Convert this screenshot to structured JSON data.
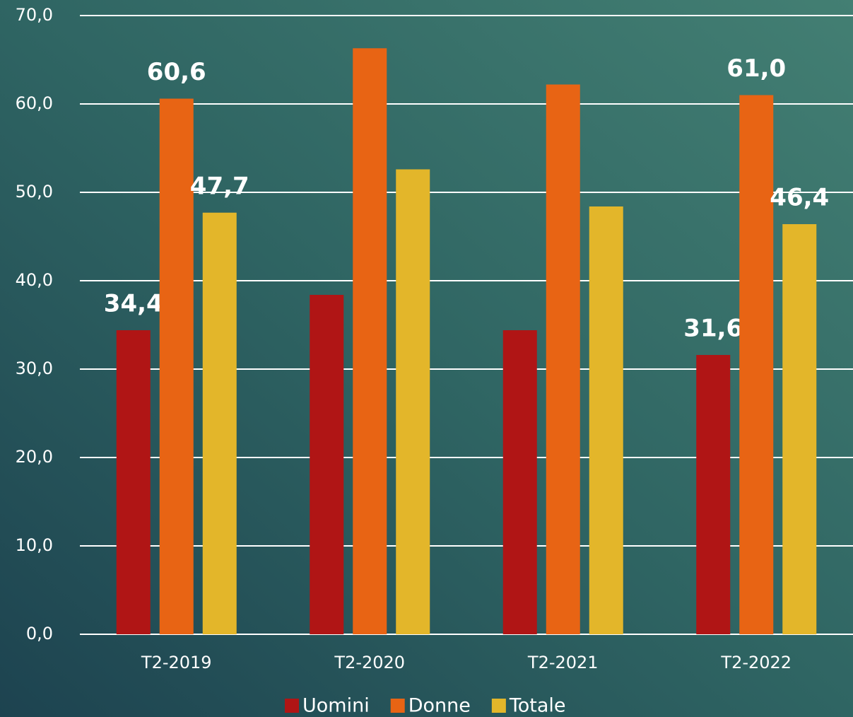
{
  "chart_data": {
    "type": "bar",
    "categories": [
      "T2-2019",
      "T2-2020",
      "T2-2021",
      "T2-2022"
    ],
    "series": [
      {
        "name": "Uomini",
        "color": "#b01515",
        "values": [
          34.4,
          38.4,
          34.4,
          31.6
        ],
        "value_labels": [
          "34,4",
          null,
          null,
          "31,6"
        ]
      },
      {
        "name": "Donne",
        "color": "#e86414",
        "values": [
          60.6,
          66.3,
          62.2,
          61.0
        ],
        "value_labels": [
          "60,6",
          null,
          null,
          "61,0"
        ]
      },
      {
        "name": "Totale",
        "color": "#e3b62a",
        "values": [
          47.7,
          52.6,
          48.4,
          46.4
        ],
        "value_labels": [
          "47,7",
          null,
          null,
          "46,4"
        ]
      }
    ],
    "ylim": [
      0,
      70
    ],
    "yticks": [
      {
        "value": 0,
        "label": "0,0"
      },
      {
        "value": 10,
        "label": "10,0"
      },
      {
        "value": 20,
        "label": "20,0"
      },
      {
        "value": 30,
        "label": "30,0"
      },
      {
        "value": 40,
        "label": "40,0"
      },
      {
        "value": 50,
        "label": "50,0"
      },
      {
        "value": 60,
        "label": "60,0"
      },
      {
        "value": 70,
        "label": "70,0"
      }
    ],
    "grid": true,
    "legend": "bottom"
  }
}
